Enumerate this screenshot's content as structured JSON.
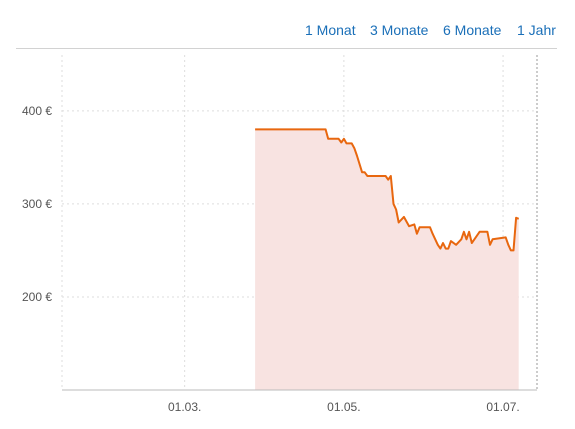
{
  "range_tabs": [
    "1 Monat",
    "3 Monate",
    "6 Monate",
    "1 Jahr"
  ],
  "chart_data": {
    "type": "area",
    "title": "",
    "xlabel": "",
    "ylabel": "",
    "currency": "€",
    "x_ticks": [
      "01.03.",
      "01.05.",
      "01.07."
    ],
    "y_ticks": [
      "200 €",
      "300 €",
      "400 €"
    ],
    "ylim": [
      100,
      460
    ],
    "xlim": [
      "2019-01-13",
      "2019-07-14"
    ],
    "grid": true,
    "series": [
      {
        "color": "#e8670f",
        "fill": "#f8e3e1",
        "points": [
          [
            "2019-03-28",
            380
          ],
          [
            "2019-04-24",
            380
          ],
          [
            "2019-04-25",
            370
          ],
          [
            "2019-04-29",
            370
          ],
          [
            "2019-04-30",
            366
          ],
          [
            "2019-05-01",
            370
          ],
          [
            "2019-05-02",
            365
          ],
          [
            "2019-05-04",
            365
          ],
          [
            "2019-05-05",
            360
          ],
          [
            "2019-05-06",
            352
          ],
          [
            "2019-05-08",
            334
          ],
          [
            "2019-05-09",
            334
          ],
          [
            "2019-05-10",
            330
          ],
          [
            "2019-05-17",
            330
          ],
          [
            "2019-05-18",
            326
          ],
          [
            "2019-05-19",
            330
          ],
          [
            "2019-05-20",
            300
          ],
          [
            "2019-05-21",
            294
          ],
          [
            "2019-05-22",
            280
          ],
          [
            "2019-05-24",
            286
          ],
          [
            "2019-05-26",
            276
          ],
          [
            "2019-05-28",
            278
          ],
          [
            "2019-05-29",
            268
          ],
          [
            "2019-05-30",
            275
          ],
          [
            "2019-06-03",
            275
          ],
          [
            "2019-06-04",
            268
          ],
          [
            "2019-06-06",
            256
          ],
          [
            "2019-06-07",
            252
          ],
          [
            "2019-06-08",
            258
          ],
          [
            "2019-06-09",
            252
          ],
          [
            "2019-06-10",
            252
          ],
          [
            "2019-06-11",
            260
          ],
          [
            "2019-06-13",
            256
          ],
          [
            "2019-06-15",
            262
          ],
          [
            "2019-06-16",
            270
          ],
          [
            "2019-06-17",
            262
          ],
          [
            "2019-06-18",
            270
          ],
          [
            "2019-06-19",
            258
          ],
          [
            "2019-06-20",
            262
          ],
          [
            "2019-06-22",
            270
          ],
          [
            "2019-06-25",
            270
          ],
          [
            "2019-06-26",
            256
          ],
          [
            "2019-06-27",
            262
          ],
          [
            "2019-07-02",
            264
          ],
          [
            "2019-07-03",
            256
          ],
          [
            "2019-07-04",
            250
          ],
          [
            "2019-07-05",
            250
          ],
          [
            "2019-07-06",
            285
          ],
          [
            "2019-07-07",
            284
          ]
        ]
      }
    ]
  }
}
